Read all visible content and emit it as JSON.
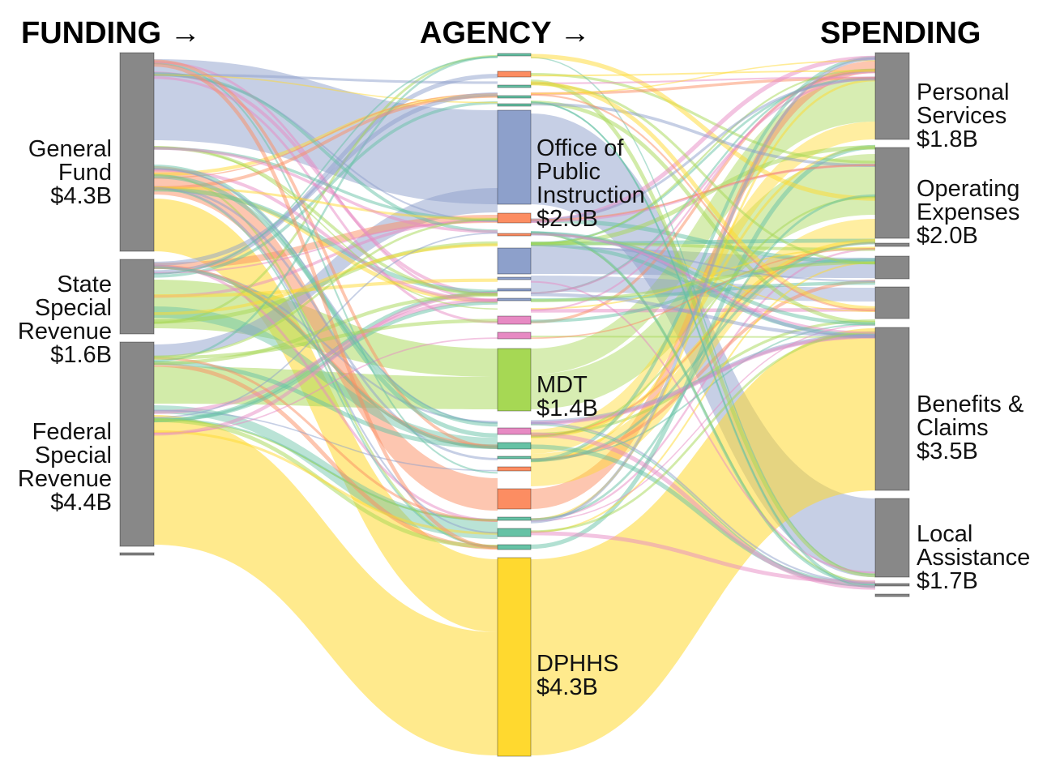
{
  "headers": {
    "funding": "FUNDING →",
    "agency": "AGENCY →",
    "spending": "SPENDING"
  },
  "colors": {
    "node_gray": "#888888",
    "general_fund": "#8da0cb",
    "mdt": "#a6d854",
    "dphhs": "#ffd92f",
    "dark_orange": "#fc8d62",
    "teal": "#66c2a5",
    "pink": "#e78ac3"
  },
  "chart_data": {
    "type": "sankey",
    "units": "$B",
    "columns": [
      "FUNDING",
      "AGENCY",
      "SPENDING"
    ],
    "funding_sources": [
      {
        "label_lines": [
          "General",
          "Fund",
          "$4.3B"
        ],
        "value": 4.3
      },
      {
        "label_lines": [
          "State",
          "Special",
          "Revenue",
          "$1.6B"
        ],
        "value": 1.6
      },
      {
        "label_lines": [
          "Federal",
          "Special",
          "Revenue",
          "$4.4B"
        ],
        "value": 4.4
      }
    ],
    "agencies": [
      {
        "label_lines": [
          "Office of",
          "Public",
          "Instruction",
          "$2.0B"
        ],
        "value": 2.0
      },
      {
        "label_lines": [
          "MDT",
          "$1.4B"
        ],
        "value": 1.4
      },
      {
        "label_lines": [
          "DPHHS",
          "$4.3B"
        ],
        "value": 4.3
      }
    ],
    "spending_categories": [
      {
        "label_lines": [
          "Personal",
          "Services",
          "$1.8B"
        ],
        "value": 1.8
      },
      {
        "label_lines": [
          "Operating",
          "Expenses",
          "$2.0B"
        ],
        "value": 2.0
      },
      {
        "label_lines": [
          "Benefits &",
          "Claims",
          "$3.5B"
        ],
        "value": 3.5
      },
      {
        "label_lines": [
          "Local",
          "Assistance",
          "$1.7B"
        ],
        "value": 1.7
      }
    ],
    "major_flows": [
      {
        "from": "General Fund",
        "to": "Office of Public Instruction",
        "approx_value": 1.6
      },
      {
        "from": "General Fund",
        "to": "DPHHS",
        "approx_value": 0.9
      },
      {
        "from": "State Special Revenue",
        "to": "MDT",
        "approx_value": 0.5
      },
      {
        "from": "Federal Special Revenue",
        "to": "MDT",
        "approx_value": 0.7
      },
      {
        "from": "Federal Special Revenue",
        "to": "DPHHS",
        "approx_value": 2.3
      },
      {
        "from": "DPHHS",
        "to": "Benefits & Claims",
        "approx_value": 2.9
      },
      {
        "from": "Office of Public Instruction",
        "to": "Local Assistance",
        "approx_value": 1.5
      },
      {
        "from": "MDT",
        "to": "Operating Expenses",
        "approx_value": 0.7
      }
    ]
  }
}
